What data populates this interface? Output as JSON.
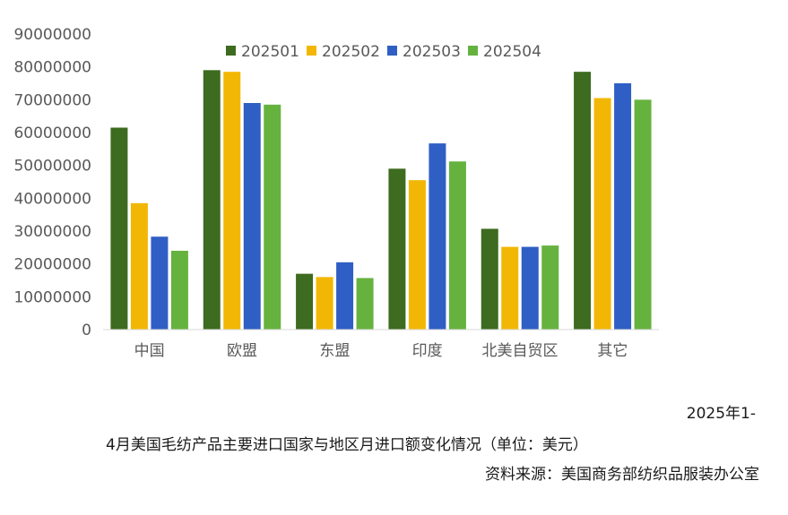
{
  "chart_data": {
    "type": "bar",
    "categories": [
      "中国",
      "欧盟",
      "东盟",
      "印度",
      "北美自贸区",
      "其它"
    ],
    "series": [
      {
        "name": "202501",
        "color": "#3d6b1f",
        "values": [
          61500000,
          79000000,
          17000000,
          49000000,
          30700000,
          78500000
        ]
      },
      {
        "name": "202502",
        "color": "#f2b705",
        "values": [
          38500000,
          78500000,
          16000000,
          45500000,
          25200000,
          70500000
        ]
      },
      {
        "name": "202503",
        "color": "#2f5fc4",
        "values": [
          28300000,
          69000000,
          20500000,
          56700000,
          25200000,
          75000000
        ]
      },
      {
        "name": "202504",
        "color": "#66b23f",
        "values": [
          24000000,
          68500000,
          15700000,
          51200000,
          25600000,
          70000000
        ]
      }
    ],
    "ylim": [
      0,
      90000000
    ],
    "yticks": [
      "0",
      "10000000",
      "20000000",
      "30000000",
      "40000000",
      "50000000",
      "60000000",
      "70000000",
      "80000000",
      "90000000"
    ],
    "legend_position": "top",
    "grid": false
  },
  "caption": {
    "line1": "2025年1-",
    "line2": "4月美国毛纺产品主要进口国家与地区月进口额变化情况（单位：美元）",
    "source": "资料来源：美国商务部纺织品服装办公室"
  }
}
